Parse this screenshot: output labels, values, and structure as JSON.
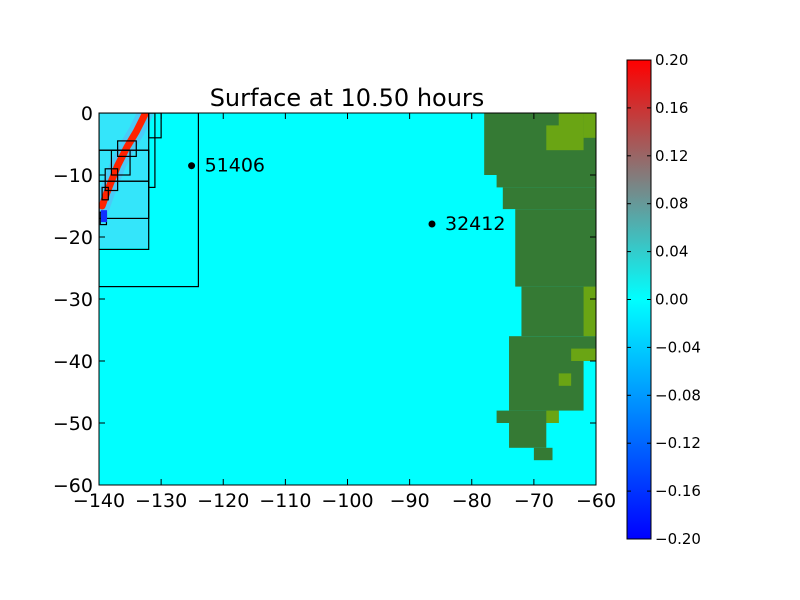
{
  "chart_data": {
    "type": "heatmap",
    "title": "Surface at 10.50 hours",
    "xlabel": "",
    "ylabel": "",
    "xlim": [
      -140,
      -60
    ],
    "ylim": [
      -60,
      0
    ],
    "xticks": [
      "−140",
      "−130",
      "−120",
      "−110",
      "−100",
      "−90",
      "−80",
      "−70",
      "−60"
    ],
    "yticks": [
      "0",
      "−10",
      "−20",
      "−30",
      "−40",
      "−50",
      "−60"
    ],
    "field_background_value": 0.0,
    "field_background_color": "#00ffff",
    "tsunami_front": {
      "max_value": 0.2,
      "color": "#ff2200",
      "path": [
        [
          -132.5,
          0
        ],
        [
          -134,
          -3
        ],
        [
          -135.5,
          -5.5
        ],
        [
          -137,
          -8.5
        ],
        [
          -138,
          -11
        ],
        [
          -138.8,
          -13
        ],
        [
          -139.5,
          -15
        ]
      ],
      "negative_patch": [
        -139.2,
        -16.8
      ]
    },
    "gauges": [
      {
        "id": "51406",
        "x": -125.1,
        "y": -8.5
      },
      {
        "id": "32412",
        "x": -86.4,
        "y": -17.9
      }
    ],
    "grid_patches": [
      {
        "x1": -140,
        "x2": -124,
        "y1": -28,
        "y2": 0
      },
      {
        "x1": -140,
        "x2": -132,
        "y1": -22,
        "y2": -6
      },
      {
        "x1": -140,
        "x2": -132,
        "y1": -17,
        "y2": -11
      },
      {
        "x1": -140,
        "x2": -132,
        "y1": -11,
        "y2": -6
      },
      {
        "x1": -132,
        "x2": -130,
        "y1": -4,
        "y2": 0
      },
      {
        "x1": -132,
        "x2": -131,
        "y1": -12,
        "y2": 0
      },
      {
        "x1": -137,
        "x2": -134,
        "y1": -7,
        "y2": -4.5
      },
      {
        "x1": -138,
        "x2": -135,
        "y1": -10,
        "y2": -6
      },
      {
        "x1": -139,
        "x2": -137,
        "y1": -12.5,
        "y2": -9
      },
      {
        "x1": -139.5,
        "x2": -138.5,
        "y1": -14,
        "y2": -12
      },
      {
        "x1": -139.8,
        "x2": -138.8,
        "y1": -18,
        "y2": -16
      }
    ],
    "land": {
      "color": "#357a34",
      "highland_color": "#6aa514",
      "blocks": [
        [
          -78,
          -60,
          0,
          -10
        ],
        [
          -76,
          -60,
          -10,
          -12
        ],
        [
          -75,
          -60,
          -12,
          -15.5
        ],
        [
          -73,
          -60,
          -15.5,
          -28
        ],
        [
          -72,
          -60,
          -28,
          -36
        ],
        [
          -74,
          -60,
          -36,
          -40
        ],
        [
          -74,
          -62,
          -40,
          -48
        ],
        [
          -76,
          -66,
          -48,
          -50
        ],
        [
          -74,
          -68,
          -50,
          -54
        ],
        [
          -70,
          -67,
          -54,
          -56
        ]
      ],
      "highlands": [
        [
          -66,
          -62,
          0,
          -4
        ],
        [
          -68,
          -62,
          -2,
          -6
        ],
        [
          -62,
          -60,
          0,
          -4
        ],
        [
          -62,
          -60,
          -28,
          -36
        ],
        [
          -64,
          -60,
          -38,
          -40
        ],
        [
          -66,
          -64,
          -42,
          -44
        ],
        [
          -68,
          -66,
          -48,
          -50
        ]
      ]
    },
    "colorbar": {
      "vmin": -0.2,
      "vmax": 0.2,
      "colors": [
        "#0000ff",
        "#00ffff",
        "#ff0000"
      ],
      "ticks": [
        "0.20",
        "0.16",
        "0.12",
        "0.08",
        "0.04",
        "0.00",
        "−0.04",
        "−0.08",
        "−0.12",
        "−0.16",
        "−0.20"
      ]
    }
  }
}
